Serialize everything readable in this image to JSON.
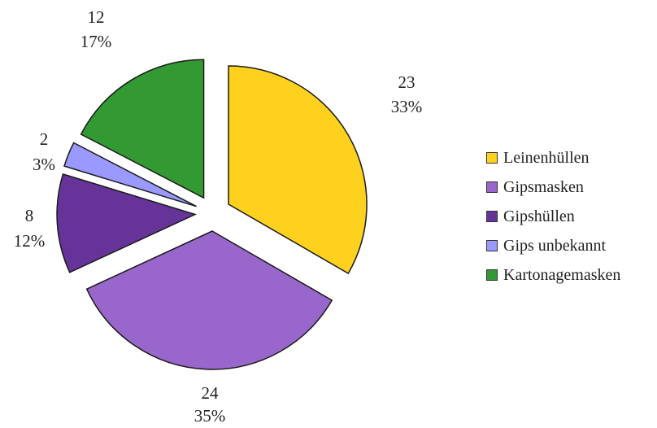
{
  "chart_data": {
    "type": "pie",
    "title": "",
    "legend_position": "right",
    "slices": [
      {
        "name": "Leinenhüllen",
        "value": 23,
        "percent": "33%",
        "color": "#FFD11F",
        "exploded": true
      },
      {
        "name": "Gipsmasken",
        "value": 24,
        "percent": "35%",
        "color": "#9966CC",
        "exploded": true
      },
      {
        "name": "Gipshüllen",
        "value": 8,
        "percent": "12%",
        "color": "#663399",
        "exploded": true
      },
      {
        "name": "Gips unbekannt",
        "value": 2,
        "percent": "3%",
        "color": "#9999FF",
        "exploded": true
      },
      {
        "name": "Kartonagemasken",
        "value": 12,
        "percent": "17%",
        "color": "#339933",
        "exploded": true
      }
    ]
  }
}
